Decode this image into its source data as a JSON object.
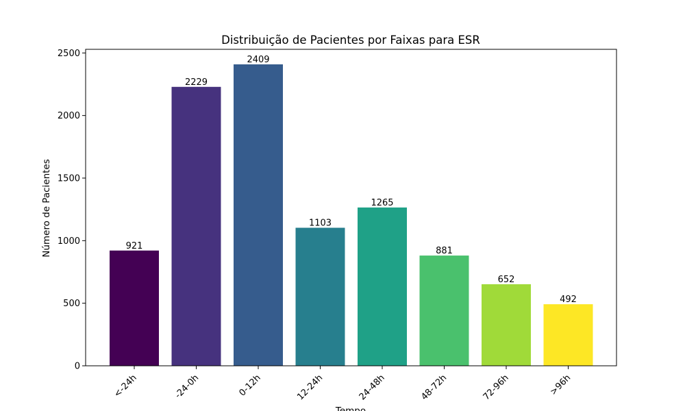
{
  "chart_data": {
    "type": "bar",
    "title": "Distribuição de Pacientes por Faixas para ESR",
    "xlabel": "Tempo",
    "ylabel": "Número de Pacientes",
    "categories": [
      "<-24h",
      "-24-0h",
      "0-12h",
      "12-24h",
      "24-48h",
      "48-72h",
      "72-96h",
      ">96h"
    ],
    "values": [
      921,
      2229,
      2409,
      1103,
      1265,
      881,
      652,
      492
    ],
    "data_labels": [
      "921",
      "2229",
      "2409",
      "1103",
      "1265",
      "881",
      "652",
      "492"
    ],
    "bar_colors": [
      "#440154",
      "#46327e",
      "#365c8d",
      "#277f8e",
      "#1fa187",
      "#4ac16d",
      "#a0da39",
      "#fde725"
    ],
    "y_ticks": [
      0,
      500,
      1000,
      1500,
      2000,
      2500
    ],
    "y_tick_labels": [
      "0",
      "500",
      "1000",
      "1500",
      "2000",
      "2500"
    ],
    "ylim": [
      0,
      2529
    ],
    "grid": false,
    "legend": false,
    "x_tick_rotation_deg": 45
  }
}
